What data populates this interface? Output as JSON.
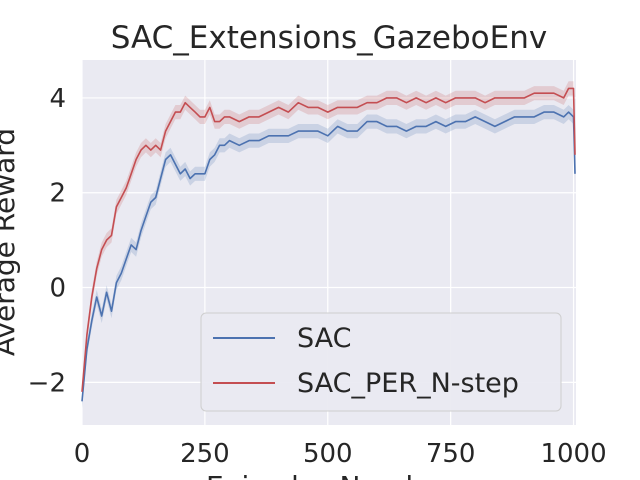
{
  "chart_data": {
    "type": "line",
    "title": "SAC_Extensions_GazeboEnv",
    "xlabel": "Episodes Number",
    "ylabel": "Average Reward",
    "xlim": [
      0,
      1005
    ],
    "ylim": [
      -2.9,
      4.8
    ],
    "xticks": [
      0,
      250,
      500,
      750,
      1000
    ],
    "yticks": [
      -2,
      0,
      2,
      4
    ],
    "xtick_labels": [
      "0",
      "250",
      "500",
      "750",
      "1000"
    ],
    "ytick_labels": [
      "−2",
      "0",
      "2",
      "4"
    ],
    "grid": true,
    "legend_position": "lower-right",
    "background": "#EAEAF2",
    "series": [
      {
        "name": "SAC",
        "color": "#4C72B0",
        "x": [
          0,
          10,
          20,
          30,
          40,
          50,
          60,
          70,
          80,
          90,
          100,
          110,
          120,
          130,
          140,
          150,
          160,
          170,
          180,
          190,
          200,
          210,
          220,
          230,
          240,
          250,
          260,
          270,
          280,
          290,
          300,
          320,
          340,
          360,
          380,
          400,
          420,
          440,
          460,
          480,
          500,
          520,
          540,
          560,
          580,
          600,
          620,
          640,
          660,
          680,
          700,
          720,
          740,
          760,
          780,
          800,
          820,
          840,
          860,
          880,
          900,
          920,
          940,
          960,
          980,
          990,
          1000,
          1003
        ],
        "values": [
          -2.4,
          -1.3,
          -0.7,
          -0.2,
          -0.6,
          -0.1,
          -0.5,
          0.1,
          0.3,
          0.6,
          0.9,
          0.8,
          1.2,
          1.5,
          1.8,
          1.9,
          2.3,
          2.7,
          2.8,
          2.6,
          2.4,
          2.5,
          2.3,
          2.4,
          2.4,
          2.4,
          2.7,
          2.8,
          3.0,
          3.0,
          3.1,
          3.0,
          3.1,
          3.1,
          3.2,
          3.2,
          3.2,
          3.3,
          3.3,
          3.3,
          3.2,
          3.4,
          3.3,
          3.3,
          3.5,
          3.5,
          3.4,
          3.4,
          3.3,
          3.4,
          3.4,
          3.5,
          3.4,
          3.5,
          3.5,
          3.6,
          3.5,
          3.4,
          3.5,
          3.6,
          3.6,
          3.6,
          3.7,
          3.7,
          3.6,
          3.7,
          3.6,
          2.4
        ],
        "band": 0.15
      },
      {
        "name": "SAC_PER_N-step",
        "color": "#C44E52",
        "x": [
          0,
          10,
          20,
          30,
          40,
          50,
          60,
          70,
          80,
          90,
          100,
          110,
          120,
          130,
          140,
          150,
          160,
          170,
          180,
          190,
          200,
          210,
          220,
          230,
          240,
          250,
          260,
          270,
          280,
          290,
          300,
          320,
          340,
          360,
          380,
          400,
          420,
          440,
          460,
          480,
          500,
          520,
          540,
          560,
          580,
          600,
          620,
          640,
          660,
          680,
          700,
          720,
          740,
          760,
          780,
          800,
          820,
          840,
          860,
          880,
          900,
          920,
          940,
          960,
          980,
          990,
          1000,
          1003
        ],
        "values": [
          -2.2,
          -1.0,
          -0.2,
          0.4,
          0.8,
          1.0,
          1.1,
          1.7,
          1.9,
          2.1,
          2.4,
          2.7,
          2.9,
          3.0,
          2.9,
          3.0,
          2.9,
          3.3,
          3.5,
          3.7,
          3.7,
          3.9,
          3.8,
          3.7,
          3.6,
          3.6,
          3.8,
          3.5,
          3.5,
          3.6,
          3.6,
          3.5,
          3.6,
          3.6,
          3.7,
          3.8,
          3.7,
          3.9,
          3.8,
          3.8,
          3.7,
          3.8,
          3.8,
          3.8,
          3.9,
          3.9,
          4.0,
          4.0,
          3.9,
          4.0,
          3.9,
          4.0,
          3.9,
          4.0,
          4.0,
          4.0,
          3.9,
          4.0,
          4.0,
          4.0,
          4.0,
          4.1,
          4.1,
          4.1,
          4.0,
          4.2,
          4.2,
          2.8
        ],
        "band": 0.15
      }
    ]
  }
}
